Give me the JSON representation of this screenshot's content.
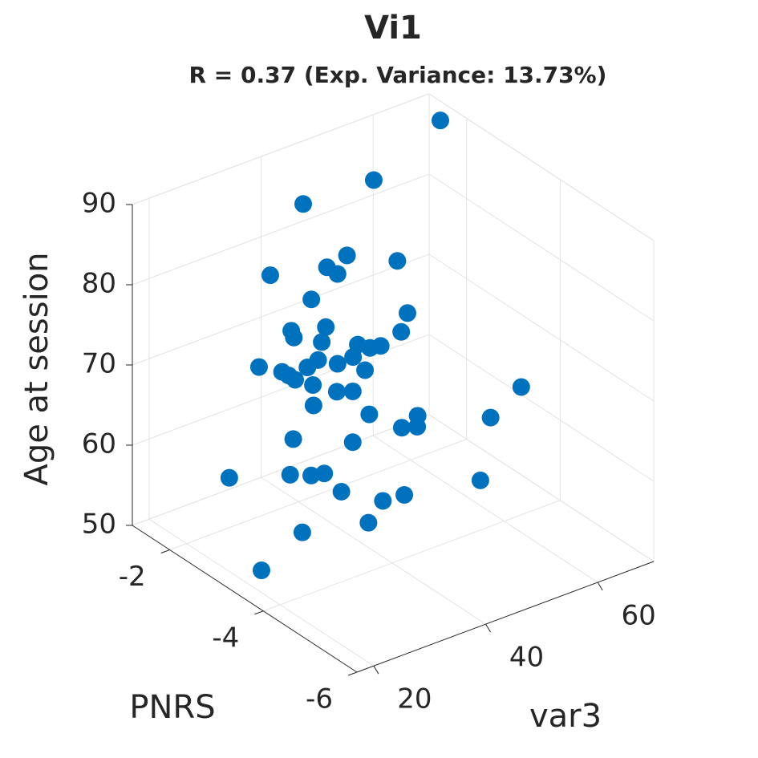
{
  "chart_data": {
    "type": "scatter3d",
    "title": "Vi1",
    "subtitle": "R = 0.37 (Exp. Variance: 13.73%)",
    "xlabel": "PNRS",
    "ylabel": "var3",
    "zlabel": "Age at session",
    "color": "#0072bd",
    "grid": true,
    "xlim": [
      -6,
      -1.2
    ],
    "xticks": [
      -6,
      -4,
      -2
    ],
    "ylim": [
      17,
      70
    ],
    "yticks": [
      20,
      40,
      60
    ],
    "zlim": [
      50,
      90
    ],
    "zticks": [
      50,
      60,
      70,
      80,
      90
    ],
    "x": [
      -1.44,
      -1.68,
      -1.68,
      -2.64,
      -3.6,
      -2.16,
      -3.12,
      -2.64,
      -4.08,
      -2.64,
      -3.6,
      -4.56,
      -1.68,
      -3.12,
      -2.16,
      -4.08,
      -2.64,
      -3.6,
      -1.68,
      -4.56,
      -3.12,
      -2.16,
      -4.08,
      -2.64,
      -3.6,
      -1.68,
      -4.56,
      -3.12,
      -2.16,
      -4.08,
      -3.36,
      -3.6,
      -1.68,
      -4.56,
      -3.12,
      -2.16,
      -4.08,
      -2.64,
      -3.6,
      -1.68,
      -4.56,
      -3.12,
      -4.08,
      -3.6,
      -2.64,
      -4.08,
      -3.12,
      -4.08,
      -3.6,
      -3.84
    ],
    "y": [
      70,
      56.1,
      43.5,
      43.3,
      31.7,
      56.3,
      37.6,
      29.6,
      24.9,
      54.1,
      31.5,
      17.3,
      61.0,
      29.8,
      42.8,
      33.2,
      47.4,
      41.3,
      52.4,
      22.1,
      37.6,
      31.6,
      24.2,
      31.7,
      38.5,
      40.9,
      18.0,
      33.2,
      45.5,
      32.3,
      68.4,
      29.3,
      55.3,
      52.9,
      51.9,
      57.1,
      43.8,
      33.7,
      36.3,
      30.3,
      17.1,
      32.9,
      27.2,
      59.1,
      42.3,
      41.5,
      45.7,
      35.1,
      27.3,
      18.0
    ],
    "z": [
      87.6,
      84.7,
      85.0,
      82.3,
      87.5,
      76.4,
      83.3,
      83.4,
      87.1,
      72.3,
      80.1,
      87.0,
      64.5,
      77.4,
      69.8,
      79.3,
      69.7,
      75.2,
      63.6,
      82.1,
      72.1,
      69.6,
      78.8,
      70.8,
      72.9,
      64.3,
      80.7,
      70.6,
      62.9,
      73.7,
      62.1,
      70.9,
      55.7,
      66.9,
      61.9,
      55.4,
      66.3,
      61.9,
      64.5,
      54.3,
      69.1,
      59.4,
      64.8,
      53.8,
      53.1,
      58.4,
      52.9,
      56.6,
      55.6,
      54.2
    ]
  }
}
